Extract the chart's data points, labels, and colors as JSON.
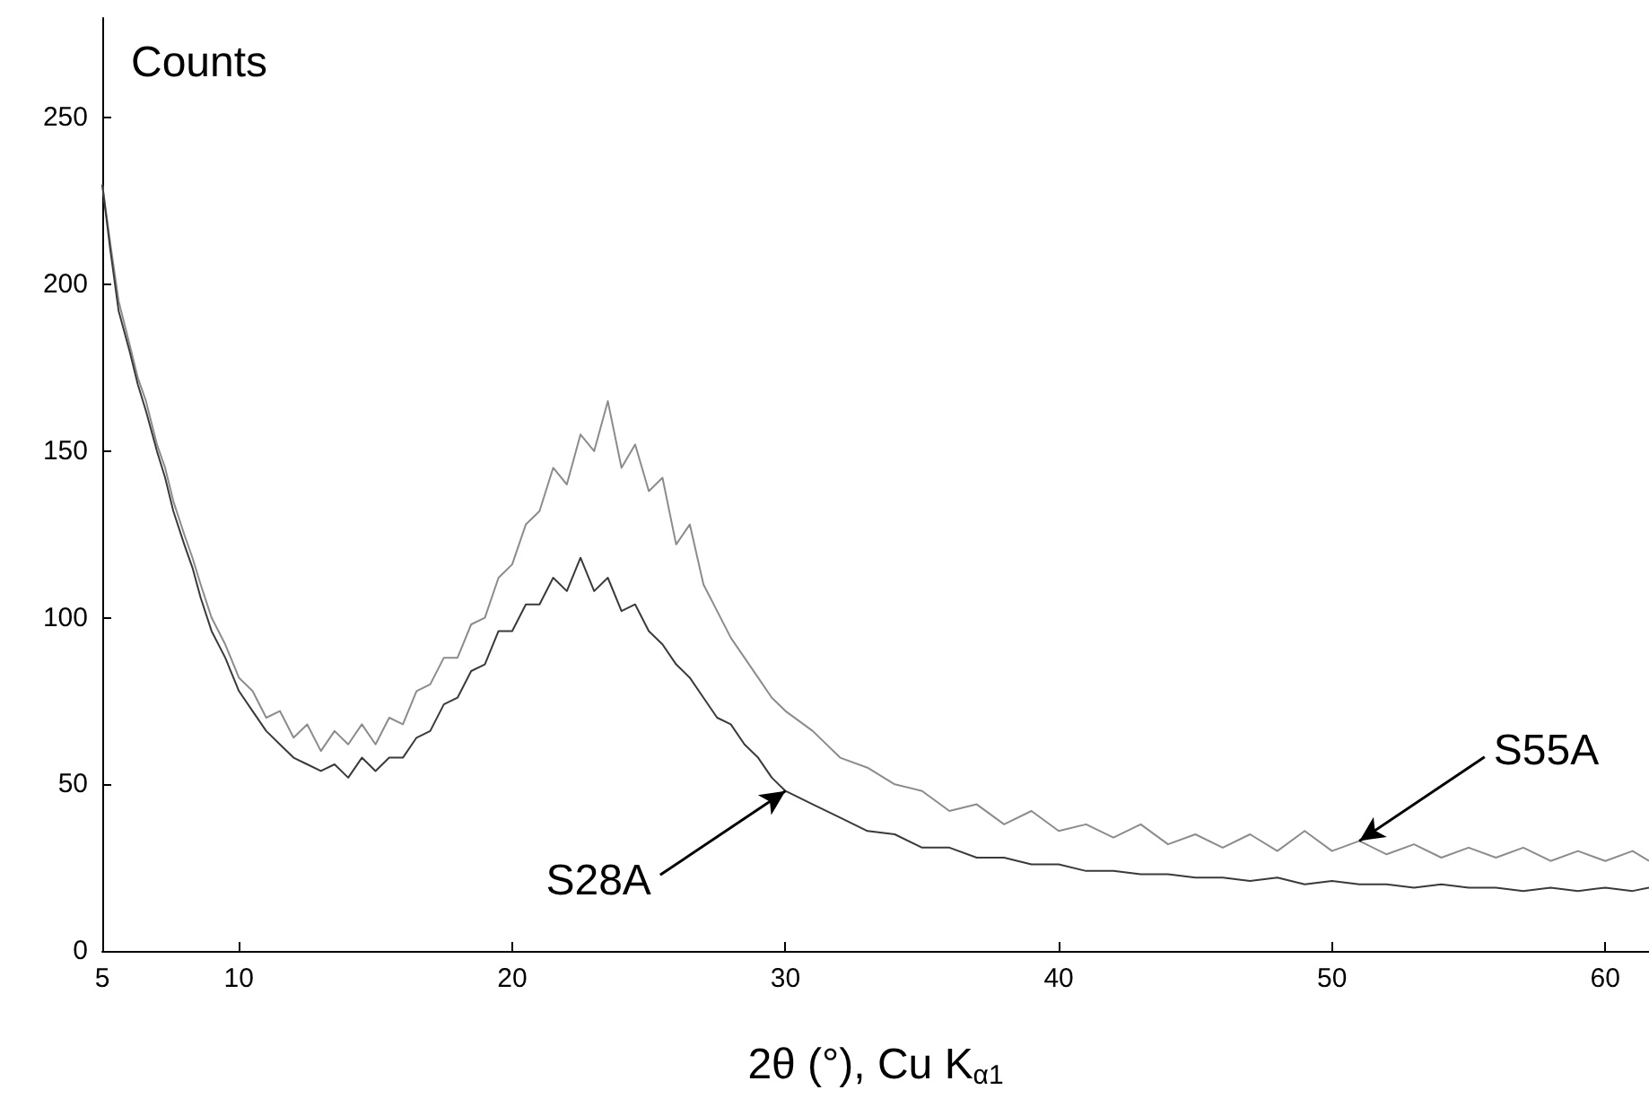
{
  "chart_data": {
    "type": "line",
    "ylabel": "Counts",
    "xlabel": "2θ (°), Cu K$_{α1}$",
    "x": [
      5,
      5.3,
      5.6,
      6,
      6.3,
      6.6,
      7,
      7.3,
      7.6,
      8,
      8.3,
      8.6,
      9,
      9.5,
      10,
      10.5,
      11,
      11.5,
      12,
      12.5,
      13,
      13.5,
      14,
      14.5,
      15,
      15.5,
      16,
      16.5,
      17,
      17.5,
      18,
      18.5,
      19,
      19.5,
      20,
      20.5,
      21,
      21.5,
      22,
      22.5,
      23,
      23.5,
      24,
      24.5,
      25,
      25.5,
      26,
      26.5,
      27,
      27.5,
      28,
      28.5,
      29,
      29.5,
      30,
      31,
      32,
      33,
      34,
      35,
      36,
      37,
      38,
      39,
      40,
      41,
      42,
      43,
      44,
      45,
      46,
      47,
      48,
      49,
      50,
      51,
      52,
      53,
      54,
      55,
      56,
      57,
      58,
      59,
      60,
      61,
      61.6
    ],
    "series": [
      {
        "color": "#8c8c8c",
        "values": [
          230,
          212,
          195,
          182,
          172,
          165,
          152,
          145,
          135,
          125,
          118,
          110,
          100,
          92,
          82,
          78,
          70,
          72,
          64,
          68,
          60,
          66,
          62,
          68,
          62,
          70,
          68,
          78,
          80,
          88,
          88,
          98,
          100,
          112,
          116,
          128,
          132,
          145,
          140,
          155,
          150,
          165,
          145,
          152,
          138,
          142,
          122,
          128,
          110,
          102,
          94,
          88,
          82,
          76,
          72,
          66,
          58,
          55,
          50,
          48,
          42,
          44,
          38,
          42,
          36,
          38,
          34,
          38,
          32,
          35,
          31,
          35,
          30,
          36,
          30,
          33,
          29,
          32,
          28,
          31,
          28,
          31,
          27,
          30,
          27,
          30,
          27
        ]
      },
      {
        "color": "#3a3a3a",
        "values": [
          230,
          210,
          192,
          180,
          170,
          162,
          150,
          142,
          132,
          122,
          115,
          106,
          96,
          88,
          78,
          72,
          66,
          62,
          58,
          56,
          54,
          56,
          52,
          58,
          54,
          58,
          58,
          64,
          66,
          74,
          76,
          84,
          86,
          96,
          96,
          104,
          104,
          112,
          108,
          118,
          108,
          112,
          102,
          104,
          96,
          92,
          86,
          82,
          76,
          70,
          68,
          62,
          58,
          52,
          48,
          44,
          40,
          36,
          35,
          31,
          31,
          28,
          28,
          26,
          26,
          24,
          24,
          23,
          23,
          22,
          22,
          21,
          22,
          20,
          21,
          20,
          20,
          19,
          20,
          19,
          19,
          18,
          19,
          18,
          19,
          18,
          19
        ]
      }
    ],
    "xlim": [
      5,
      61.6
    ],
    "xticks": [
      5,
      10,
      20,
      30,
      40,
      50,
      60
    ],
    "ylim": [
      0,
      280
    ],
    "yticks": [
      0,
      50,
      100,
      150,
      200,
      250
    ],
    "grid": false,
    "marker": "none",
    "line_style": "solid",
    "annotations": [
      {
        "text": "S28A",
        "x": 30,
        "y": 48
      },
      {
        "text": "S55A",
        "x": 51,
        "y": 33
      }
    ]
  }
}
